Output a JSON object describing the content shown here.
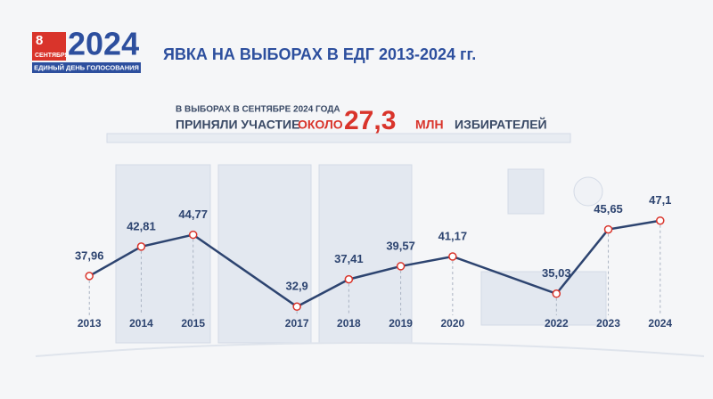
{
  "logo": {
    "day": "8",
    "month": "СЕНТЯБРЯ",
    "year": "2024",
    "caption": "ЕДИНЫЙ ДЕНЬ ГОЛОСОВАНИЯ"
  },
  "chart_data": {
    "type": "line",
    "title": "ЯВКА НА ВЫБОРАХ В ЕДГ 2013-2024 гг.",
    "annotation": {
      "line1": "В ВЫБОРАХ В СЕНТЯБРЕ 2024 ГОДА",
      "line2": "ПРИНЯЛИ УЧАСТИЕ",
      "prefix": "ОКОЛО",
      "number": "27,3",
      "unit": "МЛН",
      "suffix": "ИЗБИРАТЕЛЕЙ"
    },
    "x": [
      2013,
      2014,
      2015,
      2017,
      2018,
      2019,
      2020,
      2022,
      2023,
      2024
    ],
    "values": [
      37.96,
      42.81,
      44.77,
      32.9,
      37.41,
      39.57,
      41.17,
      35.03,
      45.65,
      47.1
    ],
    "value_labels": [
      "37,96",
      "42,81",
      "44,77",
      "32,9",
      "37,41",
      "39,57",
      "41,17",
      "35,03",
      "45,65",
      "47,1"
    ],
    "xlim": [
      2012,
      2025
    ],
    "ylim": [
      30,
      50
    ],
    "color": "#2d4470",
    "marker_color": "#d9342b"
  }
}
